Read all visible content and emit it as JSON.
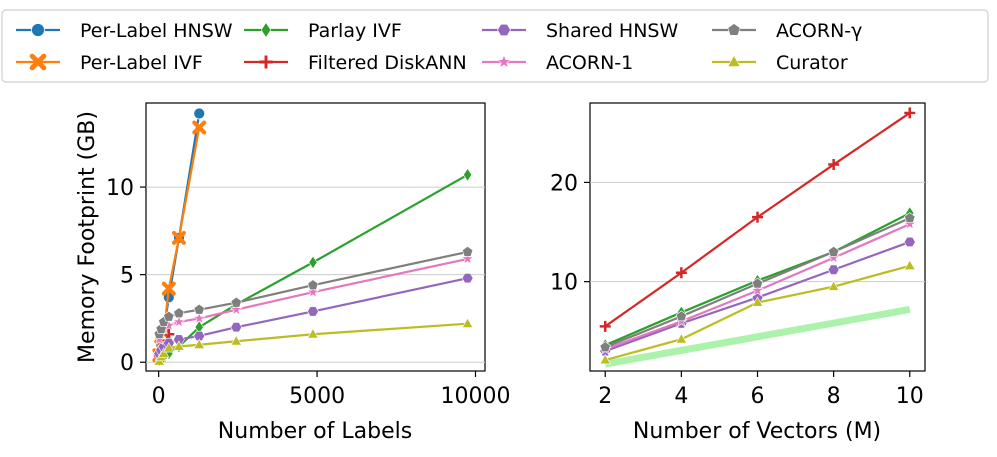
{
  "legend": {
    "entries": [
      {
        "label": "Per-Label HNSW",
        "color": "#1f77b4",
        "marker": "circle"
      },
      {
        "label": "Per-Label IVF",
        "color": "#ff7f0e",
        "marker": "x"
      },
      {
        "label": "Parlay IVF",
        "color": "#2ca02c",
        "marker": "diamond"
      },
      {
        "label": "Filtered DiskANN",
        "color": "#d62728",
        "marker": "plus"
      },
      {
        "label": "Shared HNSW",
        "color": "#9467bd",
        "marker": "hexagon"
      },
      {
        "label": "ACORN-1",
        "color": "#e377c2",
        "marker": "star"
      },
      {
        "label": "ACORN-γ",
        "color": "#7f7f7f",
        "marker": "pentagon"
      },
      {
        "label": "Curator",
        "color": "#bcbd22",
        "marker": "triangle"
      }
    ],
    "placement": "top"
  },
  "chart_data": [
    {
      "type": "line",
      "title": "",
      "xlabel": "Number of Labels",
      "ylabel": "Memory Footprint (GB)",
      "xlim": [
        -400,
        10300
      ],
      "ylim": [
        -0.5,
        14.8
      ],
      "xticks": [
        0,
        5000,
        10000
      ],
      "yticks": [
        0,
        5,
        10
      ],
      "grid": "y",
      "series": [
        {
          "name": "Per-Label HNSW",
          "x": [
            20,
            80,
            160,
            320,
            640,
            1280
          ],
          "y": [
            0.45,
            1.0,
            1.8,
            3.7,
            7.1,
            14.2
          ]
        },
        {
          "name": "Per-Label IVF",
          "x": [
            20,
            80,
            160,
            320,
            640,
            1280
          ],
          "y": [
            0.4,
            0.9,
            1.7,
            4.2,
            7.1,
            13.4
          ]
        },
        {
          "name": "Parlay IVF",
          "x": [
            20,
            80,
            160,
            320,
            640,
            1280,
            2450,
            4870,
            9750
          ],
          "y": [
            0.1,
            0.2,
            0.3,
            0.5,
            0.9,
            2.0,
            3.3,
            5.7,
            10.7
          ]
        },
        {
          "name": "Filtered DiskANN",
          "x": [
            20,
            80,
            160,
            320
          ],
          "y": [
            0.4,
            0.7,
            1.0,
            1.6
          ]
        },
        {
          "name": "Shared HNSW",
          "x": [
            20,
            80,
            160,
            320,
            640,
            1280,
            2450,
            4870,
            9750
          ],
          "y": [
            0.5,
            0.7,
            0.9,
            1.1,
            1.3,
            1.5,
            2.0,
            2.9,
            4.8
          ]
        },
        {
          "name": "ACORN-1",
          "x": [
            20,
            80,
            160,
            320,
            640,
            1280,
            2450,
            4870,
            9750
          ],
          "y": [
            1.3,
            1.6,
            1.9,
            2.1,
            2.3,
            2.5,
            3.0,
            4.0,
            5.9
          ]
        },
        {
          "name": "ACORN-γ",
          "x": [
            20,
            80,
            160,
            320,
            640,
            1280,
            2450,
            4870,
            9750
          ],
          "y": [
            1.6,
            1.9,
            2.3,
            2.6,
            2.8,
            3.0,
            3.4,
            4.4,
            6.3
          ]
        },
        {
          "name": "Curator",
          "x": [
            20,
            80,
            160,
            320,
            640,
            1280,
            2450,
            4870,
            9750
          ],
          "y": [
            0.05,
            0.3,
            0.5,
            0.8,
            0.9,
            1.0,
            1.2,
            1.6,
            2.2
          ]
        }
      ]
    },
    {
      "type": "line",
      "title": "",
      "xlabel": "Number of Vectors (M)",
      "ylabel": "",
      "xlim": [
        1.6,
        10.4
      ],
      "ylim": [
        1,
        28
      ],
      "xticks": [
        2,
        4,
        6,
        8,
        10
      ],
      "yticks": [
        10,
        20
      ],
      "grid": "y",
      "series": [
        {
          "name": "Parlay IVF",
          "x": [
            2,
            4,
            6,
            8,
            10
          ],
          "y": [
            3.6,
            6.9,
            10.1,
            13.0,
            16.9
          ]
        },
        {
          "name": "Filtered DiskANN",
          "x": [
            2,
            4,
            6,
            8,
            10
          ],
          "y": [
            5.5,
            10.9,
            16.5,
            21.8,
            27.0
          ]
        },
        {
          "name": "Shared HNSW",
          "x": [
            2,
            4,
            6,
            8,
            10
          ],
          "y": [
            3.0,
            5.8,
            8.4,
            11.2,
            14.0
          ]
        },
        {
          "name": "ACORN-1",
          "x": [
            2,
            4,
            6,
            8,
            10
          ],
          "y": [
            3.2,
            6.0,
            9.1,
            12.4,
            15.8
          ]
        },
        {
          "name": "ACORN-γ",
          "x": [
            2,
            4,
            6,
            8,
            10
          ],
          "y": [
            3.4,
            6.5,
            9.8,
            13.0,
            16.4
          ]
        },
        {
          "name": "Curator",
          "x": [
            2,
            4,
            6,
            8,
            10
          ],
          "y": [
            2.1,
            4.2,
            7.9,
            9.5,
            11.6
          ]
        }
      ],
      "reference_band": {
        "color": "#90ee90",
        "x": [
          2,
          10
        ],
        "y": [
          1.7,
          7.2
        ]
      }
    }
  ]
}
